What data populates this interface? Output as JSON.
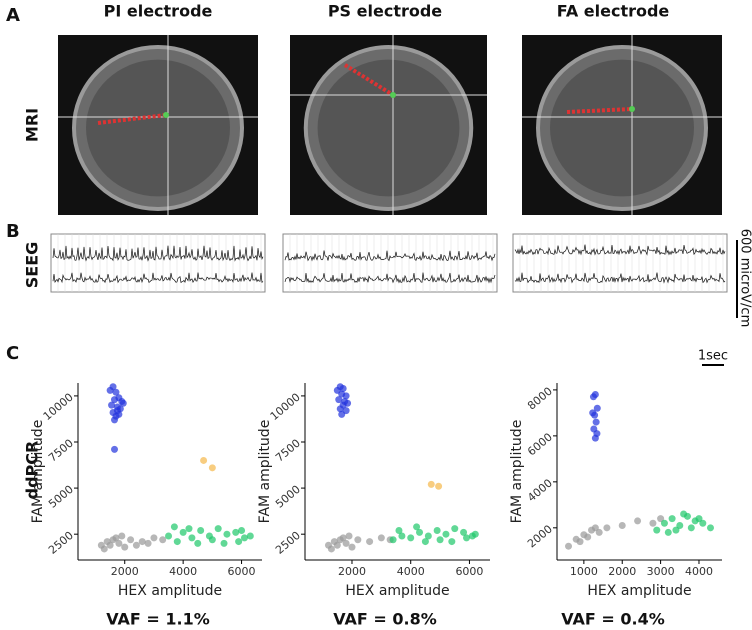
{
  "panel_labels": [
    "A",
    "B",
    "C"
  ],
  "columns": [
    "PI electrode",
    "PS electrode",
    "FA electrode"
  ],
  "row_labels": [
    "MRI",
    "SEEG",
    "ddPCR"
  ],
  "seeg_scale": {
    "amplitude": "600 microV/cm",
    "time": "1sec"
  },
  "vaf_labels": [
    "VAF = 1.1%",
    "VAF = 0.8%",
    "VAF = 0.4%"
  ],
  "chart_data": [
    {
      "type": "scatter",
      "xlabel": "HEX amplitude",
      "ylabel": "FAM amplitude",
      "xlim": [
        400,
        6700
      ],
      "ylim": [
        1100,
        10700
      ],
      "xticks": [
        2000,
        4000,
        6000
      ],
      "yticks": [
        2500,
        5000,
        7500,
        10000
      ],
      "series": [
        {
          "color": "#2233dd",
          "x": [
            1500,
            1600,
            1700,
            1800,
            1900,
            1550,
            1650,
            1750,
            1850,
            1950,
            1600,
            1700,
            1800,
            1650,
            1750,
            1650
          ],
          "values": [
            10300,
            10500,
            10200,
            9900,
            9700,
            9500,
            9800,
            9400,
            9300,
            9600,
            9100,
            8900,
            9000,
            8700,
            9200,
            7100
          ]
        },
        {
          "color": "#f5b84a",
          "x": [
            4700,
            5000
          ],
          "values": [
            6500,
            6100
          ]
        },
        {
          "color": "#999999",
          "x": [
            1200,
            1400,
            1600,
            1800,
            2000,
            1300,
            1500,
            1700,
            2200,
            2600,
            3000,
            3300,
            1900,
            2400,
            2800
          ],
          "values": [
            1900,
            2100,
            2200,
            2000,
            1800,
            1700,
            1900,
            2300,
            2200,
            2100,
            2300,
            2200,
            2400,
            1900,
            2000
          ]
        },
        {
          "color": "#1ec86a",
          "x": [
            3500,
            3800,
            4000,
            4300,
            4600,
            4900,
            5200,
            5500,
            5800,
            6100,
            6300,
            4500,
            5000,
            5400,
            5900,
            3700,
            4200,
            6000
          ],
          "values": [
            2400,
            2100,
            2600,
            2300,
            2700,
            2400,
            2800,
            2500,
            2600,
            2300,
            2400,
            2000,
            2200,
            2000,
            2100,
            2900,
            2800,
            2700
          ]
        }
      ]
    },
    {
      "type": "scatter",
      "xlabel": "HEX amplitude",
      "ylabel": "FAM amplitude",
      "xlim": [
        400,
        6700
      ],
      "ylim": [
        1100,
        10700
      ],
      "xticks": [
        2000,
        4000,
        6000
      ],
      "yticks": [
        2500,
        5000,
        7500,
        10000
      ],
      "series": [
        {
          "color": "#2233dd",
          "x": [
            1500,
            1600,
            1700,
            1800,
            1550,
            1650,
            1750,
            1850,
            1600,
            1700,
            1800,
            1650
          ],
          "values": [
            10300,
            10500,
            10400,
            10000,
            9800,
            10100,
            9700,
            9600,
            9300,
            9500,
            9200,
            9000
          ]
        },
        {
          "color": "#f5b84a",
          "x": [
            4700,
            4950
          ],
          "values": [
            5200,
            5100
          ]
        },
        {
          "color": "#999999",
          "x": [
            1200,
            1400,
            1600,
            1800,
            2000,
            1300,
            1500,
            1700,
            2200,
            2600,
            3000,
            3300,
            1900
          ],
          "values": [
            1900,
            2100,
            2200,
            2000,
            1800,
            1700,
            1900,
            2300,
            2200,
            2100,
            2300,
            2200,
            2400
          ]
        },
        {
          "color": "#1ec86a",
          "x": [
            3400,
            3700,
            4000,
            4300,
            4600,
            4900,
            5200,
            5500,
            5800,
            6100,
            6200,
            4500,
            5000,
            5400,
            5900,
            3600,
            4200
          ],
          "values": [
            2200,
            2400,
            2300,
            2600,
            2400,
            2700,
            2500,
            2800,
            2600,
            2400,
            2500,
            2100,
            2200,
            2100,
            2300,
            2700,
            2900
          ]
        }
      ]
    },
    {
      "type": "scatter",
      "xlabel": "HEX amplitude",
      "ylabel": "FAM amplitude",
      "xlim": [
        300,
        4600
      ],
      "ylim": [
        600,
        8300
      ],
      "xticks": [
        1000,
        2000,
        3000,
        4000
      ],
      "yticks": [
        2000,
        4000,
        6000,
        8000
      ],
      "series": [
        {
          "color": "#2233dd",
          "x": [
            1250,
            1300,
            1350,
            1280,
            1320,
            1260,
            1340,
            1300,
            1230
          ],
          "values": [
            7700,
            7800,
            7200,
            6900,
            6600,
            6300,
            6100,
            5900,
            7000
          ]
        },
        {
          "color": "#999999",
          "x": [
            600,
            800,
            1000,
            1200,
            1400,
            1100,
            900,
            1300,
            1600,
            2000,
            2400,
            2800,
            3000
          ],
          "values": [
            1200,
            1500,
            1700,
            1900,
            1800,
            1600,
            1400,
            2000,
            2000,
            2100,
            2300,
            2200,
            2400
          ]
        },
        {
          "color": "#1ec86a",
          "x": [
            2900,
            3100,
            3300,
            3500,
            3700,
            3900,
            4100,
            4300,
            3200,
            3600,
            4000,
            3400,
            3800
          ],
          "values": [
            1900,
            2200,
            2400,
            2100,
            2500,
            2300,
            2200,
            2000,
            1800,
            2600,
            2400,
            1900,
            2000
          ]
        }
      ]
    }
  ]
}
